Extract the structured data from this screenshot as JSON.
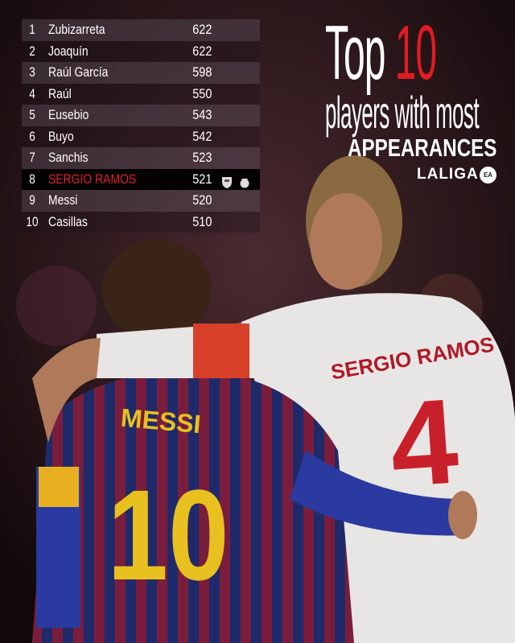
{
  "title": {
    "line1_a": "Top",
    "line1_b": "10",
    "line2": "players with most",
    "line3": "APPEARANCES",
    "brand": "LALIGA",
    "sponsor_logo": "EA"
  },
  "ranking": [
    {
      "rank": "1",
      "name": "Zubizarreta",
      "apps": "622"
    },
    {
      "rank": "2",
      "name": "Joaquín",
      "apps": "622"
    },
    {
      "rank": "3",
      "name": "Raúl García",
      "apps": "598"
    },
    {
      "rank": "4",
      "name": "Raúl",
      "apps": "550"
    },
    {
      "rank": "5",
      "name": "Eusebio",
      "apps": "543"
    },
    {
      "rank": "6",
      "name": "Buyo",
      "apps": "542"
    },
    {
      "rank": "7",
      "name": "Sanchis",
      "apps": "523"
    },
    {
      "rank": "8",
      "name": "SERGIO RAMOS",
      "apps": "521",
      "highlight": true,
      "club_icons": [
        "sevilla-crest-icon",
        "real-madrid-crest-icon"
      ]
    },
    {
      "rank": "9",
      "name": "Messi",
      "apps": "520"
    },
    {
      "rank": "10",
      "name": "Casillas",
      "apps": "510"
    }
  ],
  "photo": {
    "messi_shirt_name": "MESSI",
    "messi_shirt_number": "10",
    "ramos_shirt_name": "SERGIO RAMOS",
    "ramos_shirt_number": "4"
  },
  "colors": {
    "accent": "#e01b22",
    "highlight_row": "#000000"
  }
}
